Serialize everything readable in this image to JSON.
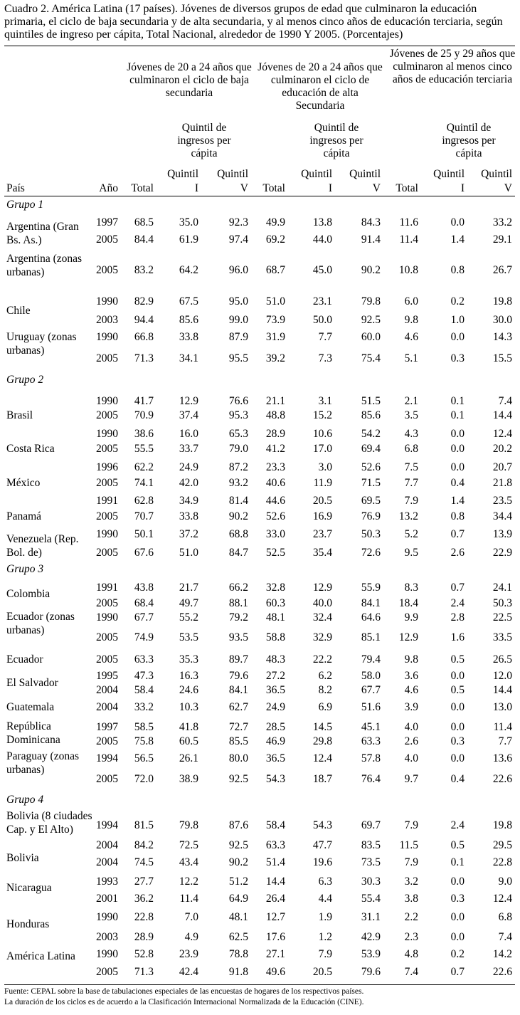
{
  "title": "Cuadro 2. América Latina (17 países). Jóvenes de diversos grupos de edad que culminaron la educación primaria, el ciclo de baja secundaria y de alta secundaria, y al menos cinco años de educación terciaria, según quintiles de ingreso per cápita, Total Nacional, alrededor de 1990 Y 2005. (Porcentajes)",
  "headers": {
    "g1": "Jóvenes de 20 a 24 años que culminaron el ciclo de baja secundaria",
    "g2": "Jóvenes de 20 a 24 años que culminaron el ciclo de educación de alta Secundaria",
    "g3": "Jóvenes de 25 y 29 años que culminaron al menos cinco años de educación terciaria",
    "quintil_group": "Quintil de ingresos per cápita",
    "q1_a": "Quintil",
    "q1_b": "I",
    "q5_a": "Quintil",
    "q5_b": "V",
    "pais": "País",
    "anio": "Año",
    "total": "Total"
  },
  "groups": [
    "Grupo 1",
    "Grupo 2",
    "Grupo 3",
    "Grupo 4"
  ],
  "countries": [
    "Argentina (Gran Bs. As.)",
    "Argentina (zonas urbanas)",
    "Chile",
    "Uruguay (zonas urbanas)",
    "Brasil",
    "Costa Rica",
    "México",
    "Panamá",
    "Venezuela (Rep. Bol. de)",
    "Colombia",
    "Ecuador (zonas urbanas)",
    "Ecuador",
    "El Salvador",
    "Guatemala",
    "República Dominicana",
    "Paraguay (zonas urbanas)",
    "Bolivia (8 ciudades Cap. y El Alto)",
    "Bolivia",
    "Nicaragua",
    "Honduras",
    "América Latina"
  ],
  "rows": [
    [
      "1997",
      "68.5",
      "35.0",
      "92.3",
      "49.9",
      "13.8",
      "84.3",
      "11.6",
      "0.0",
      "33.2"
    ],
    [
      "2005",
      "84.4",
      "61.9",
      "97.4",
      "69.2",
      "44.0",
      "91.4",
      "11.4",
      "1.4",
      "29.1"
    ],
    [
      "2005",
      "83.2",
      "64.2",
      "96.0",
      "68.7",
      "45.0",
      "90.2",
      "10.8",
      "0.8",
      "26.7"
    ],
    [
      "1990",
      "82.9",
      "67.5",
      "95.0",
      "51.0",
      "23.1",
      "79.8",
      "6.0",
      "0.2",
      "19.8"
    ],
    [
      "2003",
      "94.4",
      "85.6",
      "99.0",
      "73.9",
      "50.0",
      "92.5",
      "9.8",
      "1.0",
      "30.0"
    ],
    [
      "1990",
      "66.8",
      "33.8",
      "87.9",
      "31.9",
      "7.7",
      "60.0",
      "4.6",
      "0.0",
      "14.3"
    ],
    [
      "2005",
      "71.3",
      "34.1",
      "95.5",
      "39.2",
      "7.3",
      "75.4",
      "5.1",
      "0.3",
      "15.5"
    ],
    [
      "1990",
      "41.7",
      "12.9",
      "76.6",
      "21.1",
      "3.1",
      "51.5",
      "2.1",
      "0.1",
      "7.4"
    ],
    [
      "2005",
      "70.9",
      "37.4",
      "95.3",
      "48.8",
      "15.2",
      "85.6",
      "3.5",
      "0.1",
      "14.4"
    ],
    [
      "1990",
      "38.6",
      "16.0",
      "65.3",
      "28.9",
      "10.6",
      "54.2",
      "4.3",
      "0.0",
      "12.4"
    ],
    [
      "2005",
      "55.5",
      "33.7",
      "79.0",
      "41.2",
      "17.0",
      "69.4",
      "6.8",
      "0.0",
      "20.2"
    ],
    [
      "1996",
      "62.2",
      "24.9",
      "87.2",
      "23.3",
      "3.0",
      "52.6",
      "7.5",
      "0.0",
      "20.7"
    ],
    [
      "2005",
      "74.1",
      "42.0",
      "93.2",
      "40.6",
      "11.9",
      "71.5",
      "7.7",
      "0.4",
      "21.8"
    ],
    [
      "1991",
      "62.8",
      "34.9",
      "81.4",
      "44.6",
      "20.5",
      "69.5",
      "7.9",
      "1.4",
      "23.5"
    ],
    [
      "2005",
      "70.7",
      "33.8",
      "90.2",
      "52.6",
      "16.9",
      "76.9",
      "13.2",
      "0.8",
      "34.4"
    ],
    [
      "1990",
      "50.1",
      "37.2",
      "68.8",
      "33.0",
      "23.7",
      "50.3",
      "5.2",
      "0.7",
      "13.9"
    ],
    [
      "2005",
      "67.6",
      "51.0",
      "84.7",
      "52.5",
      "35.4",
      "72.6",
      "9.5",
      "2.6",
      "22.9"
    ],
    [
      "1991",
      "43.8",
      "21.7",
      "66.2",
      "32.8",
      "12.9",
      "55.9",
      "8.3",
      "0.7",
      "24.1"
    ],
    [
      "2005",
      "68.4",
      "49.7",
      "88.1",
      "60.3",
      "40.0",
      "84.1",
      "18.4",
      "2.4",
      "50.3"
    ],
    [
      "1990",
      "67.7",
      "55.2",
      "79.2",
      "48.1",
      "32.4",
      "64.6",
      "9.9",
      "2.8",
      "22.5"
    ],
    [
      "2005",
      "74.9",
      "53.5",
      "93.5",
      "58.8",
      "32.9",
      "85.1",
      "12.9",
      "1.6",
      "33.5"
    ],
    [
      "2005",
      "63.3",
      "35.3",
      "89.7",
      "48.3",
      "22.2",
      "79.4",
      "9.8",
      "0.5",
      "26.5"
    ],
    [
      "1995",
      "47.3",
      "16.3",
      "79.6",
      "27.2",
      "6.2",
      "58.0",
      "3.6",
      "0.0",
      "12.0"
    ],
    [
      "2004",
      "58.4",
      "24.6",
      "84.1",
      "36.5",
      "8.2",
      "67.7",
      "4.6",
      "0.5",
      "14.4"
    ],
    [
      "2004",
      "33.2",
      "10.3",
      "62.7",
      "24.9",
      "6.9",
      "51.6",
      "3.9",
      "0.0",
      "13.0"
    ],
    [
      "1997",
      "58.5",
      "41.8",
      "72.7",
      "28.5",
      "14.5",
      "45.1",
      "4.0",
      "0.0",
      "11.4"
    ],
    [
      "2005",
      "75.8",
      "60.5",
      "85.5",
      "46.9",
      "29.8",
      "63.3",
      "2.6",
      "0.3",
      "7.7"
    ],
    [
      "1994",
      "56.5",
      "26.1",
      "80.0",
      "36.5",
      "12.4",
      "57.8",
      "4.0",
      "0.0",
      "13.6"
    ],
    [
      "2005",
      "72.0",
      "38.9",
      "92.5",
      "54.3",
      "18.7",
      "76.4",
      "9.7",
      "0.4",
      "22.6"
    ],
    [
      "1994",
      "81.5",
      "79.8",
      "87.6",
      "58.4",
      "54.3",
      "69.7",
      "7.9",
      "2.4",
      "19.8"
    ],
    [
      "2004",
      "84.2",
      "72.5",
      "92.5",
      "63.3",
      "47.7",
      "83.5",
      "11.5",
      "0.5",
      "29.5"
    ],
    [
      "2004",
      "74.5",
      "43.4",
      "90.2",
      "51.4",
      "19.6",
      "73.5",
      "7.9",
      "0.1",
      "22.8"
    ],
    [
      "1993",
      "27.7",
      "12.2",
      "51.2",
      "14.4",
      "6.3",
      "30.3",
      "3.2",
      "0.0",
      "9.0"
    ],
    [
      "2001",
      "36.2",
      "11.4",
      "64.9",
      "26.4",
      "4.4",
      "55.4",
      "3.8",
      "0.3",
      "12.4"
    ],
    [
      "1990",
      "22.8",
      "7.0",
      "48.1",
      "12.7",
      "1.9",
      "31.1",
      "2.2",
      "0.0",
      "6.8"
    ],
    [
      "2003",
      "28.9",
      "4.9",
      "62.5",
      "17.6",
      "1.2",
      "42.9",
      "2.3",
      "0.0",
      "7.4"
    ],
    [
      "1990",
      "52.8",
      "23.9",
      "78.8",
      "27.1",
      "7.9",
      "53.9",
      "4.8",
      "0.2",
      "14.2"
    ],
    [
      "2005",
      "71.3",
      "42.4",
      "91.8",
      "49.6",
      "20.5",
      "79.6",
      "7.4",
      "0.7",
      "22.6"
    ]
  ],
  "footnotes": [
    "Fuente: CEPAL sobre la base de tabulaciones especiales de las encuestas de hogares de los respectivos países.",
    "La duración de los ciclos es de acuerdo a la Clasificación Internacional Normalizada de la Educación  (CINE)."
  ]
}
